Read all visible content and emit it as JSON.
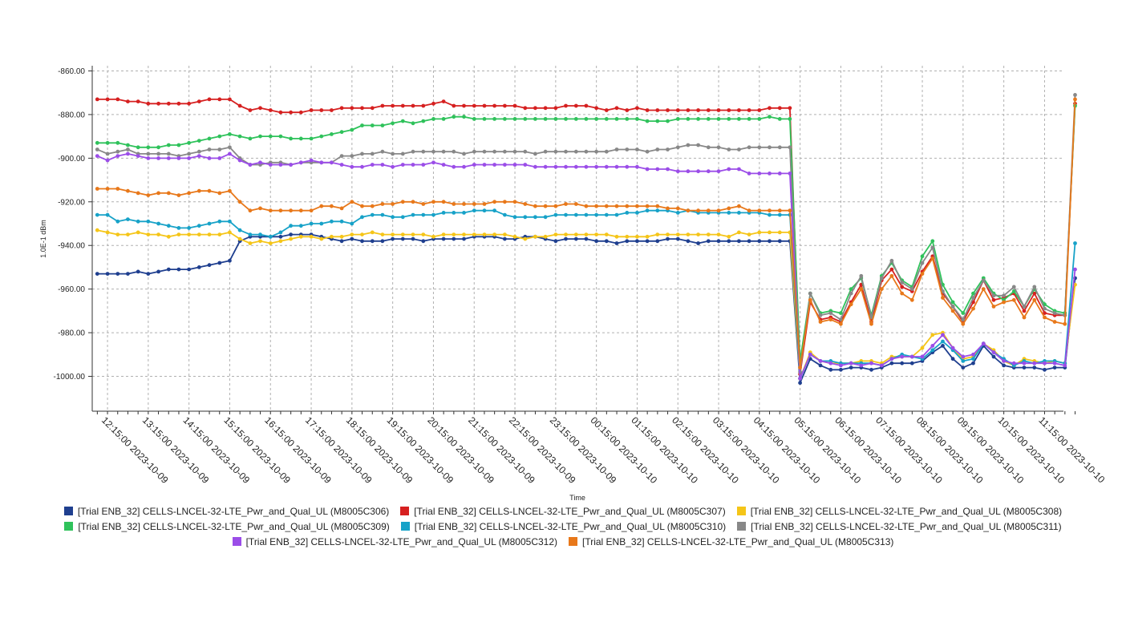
{
  "chart_data": {
    "type": "line",
    "title": "",
    "xlabel": "Time",
    "ylabel": "1.0E-1 dBm",
    "ylim": [
      -1015,
      -855
    ],
    "yticks": [
      -860,
      -880,
      -900,
      -920,
      -940,
      -960,
      -980,
      -1000
    ],
    "ytick_labels": [
      "-860.00",
      "-880.00",
      "-900.00",
      "-920.00",
      "-940.00",
      "-960.00",
      "-980.00",
      "-1000.00"
    ],
    "x_start_hour": 12.0,
    "x_step_hours": 0.25,
    "x_end_hour": 35.875,
    "xtick_labels": [
      "12:15:00 2023-10-09",
      "13:15:00 2023-10-09",
      "14:15:00 2023-10-09",
      "15:15:00 2023-10-09",
      "16:15:00 2023-10-09",
      "17:15:00 2023-10-09",
      "18:15:00 2023-10-09",
      "19:15:00 2023-10-09",
      "20:15:00 2023-10-09",
      "21:15:00 2023-10-09",
      "22:15:00 2023-10-09",
      "23:15:00 2023-10-09",
      "00:15:00 2023-10-10",
      "01:15:00 2023-10-10",
      "02:15:00 2023-10-10",
      "03:15:00 2023-10-10",
      "04:15:00 2023-10-10",
      "05:15:00 2023-10-10",
      "06:15:00 2023-10-10",
      "07:15:00 2023-10-10",
      "08:15:00 2023-10-10",
      "09:15:00 2023-10-10",
      "10:15:00 2023-10-10",
      "11:15:00 2023-10-10"
    ],
    "grid": true,
    "legend_position": "bottom",
    "series": [
      {
        "name": "[Trial ENB_32] CELLS-LNCEL-32-LTE_Pwr_and_Qual_UL (M8005C306)",
        "color": "#1f3f8f",
        "values": [
          -953,
          -953,
          -953,
          -953,
          -952,
          -953,
          -952,
          -951,
          -951,
          -951,
          -950,
          -949,
          -948,
          -947,
          -938,
          -936,
          -936,
          -936,
          -936,
          -935,
          -935,
          -935,
          -936,
          -937,
          -938,
          -937,
          -938,
          -938,
          -938,
          -937,
          -937,
          -937,
          -938,
          -937,
          -937,
          -937,
          -937,
          -936,
          -936,
          -936,
          -937,
          -937,
          -936,
          -936,
          -937,
          -938,
          -937,
          -937,
          -937,
          -938,
          -938,
          -939,
          -938,
          -938,
          -938,
          -938,
          -937,
          -937,
          -938,
          -939,
          -938,
          -938,
          -938,
          -938,
          -938,
          -938,
          -938,
          -938,
          -938,
          -1003,
          -992,
          -995,
          -997,
          -997,
          -996,
          -996,
          -997,
          -996,
          -994,
          -994,
          -994,
          -993,
          -989,
          -986,
          -992,
          -996,
          -994,
          -986,
          -991,
          -995,
          -996,
          -996,
          -996,
          -997,
          -996,
          -996,
          -955
        ]
      },
      {
        "name": "[Trial ENB_32] CELLS-LNCEL-32-LTE_Pwr_and_Qual_UL (M8005C307)",
        "color": "#d62020",
        "values": [
          -873,
          -873,
          -873,
          -874,
          -874,
          -875,
          -875,
          -875,
          -875,
          -875,
          -874,
          -873,
          -873,
          -873,
          -876,
          -878,
          -877,
          -878,
          -879,
          -879,
          -879,
          -878,
          -878,
          -878,
          -877,
          -877,
          -877,
          -877,
          -876,
          -876,
          -876,
          -876,
          -876,
          -875,
          -874,
          -876,
          -876,
          -876,
          -876,
          -876,
          -876,
          -876,
          -877,
          -877,
          -877,
          -877,
          -876,
          -876,
          -876,
          -877,
          -878,
          -877,
          -878,
          -877,
          -878,
          -878,
          -878,
          -878,
          -878,
          -878,
          -878,
          -878,
          -878,
          -878,
          -878,
          -878,
          -877,
          -877,
          -877,
          -999,
          -966,
          -974,
          -973,
          -975,
          -966,
          -958,
          -975,
          -956,
          -951,
          -959,
          -961,
          -952,
          -945,
          -962,
          -968,
          -975,
          -966,
          -956,
          -965,
          -964,
          -962,
          -970,
          -962,
          -971,
          -972,
          -972,
          -875
        ]
      },
      {
        "name": "[Trial ENB_32] CELLS-LNCEL-32-LTE_Pwr_and_Qual_UL (M8005C308)",
        "color": "#f5c518",
        "values": [
          -933,
          -934,
          -935,
          -935,
          -934,
          -935,
          -935,
          -936,
          -935,
          -935,
          -935,
          -935,
          -935,
          -934,
          -937,
          -939,
          -938,
          -939,
          -938,
          -937,
          -936,
          -936,
          -937,
          -936,
          -936,
          -935,
          -935,
          -934,
          -935,
          -935,
          -935,
          -935,
          -935,
          -936,
          -935,
          -935,
          -935,
          -935,
          -935,
          -935,
          -935,
          -936,
          -937,
          -936,
          -936,
          -935,
          -935,
          -935,
          -935,
          -935,
          -935,
          -936,
          -936,
          -936,
          -936,
          -935,
          -935,
          -935,
          -935,
          -935,
          -935,
          -935,
          -936,
          -934,
          -935,
          -934,
          -934,
          -934,
          -934,
          -1001,
          -989,
          -993,
          -994,
          -994,
          -994,
          -993,
          -993,
          -994,
          -991,
          -991,
          -991,
          -987,
          -981,
          -980,
          -987,
          -992,
          -991,
          -985,
          -988,
          -993,
          -995,
          -992,
          -993,
          -994,
          -993,
          -994,
          -958
        ]
      },
      {
        "name": "[Trial ENB_32] CELLS-LNCEL-32-LTE_Pwr_and_Qual_UL (M8005C309)",
        "color": "#2fc25b",
        "values": [
          -893,
          -893,
          -893,
          -894,
          -895,
          -895,
          -895,
          -894,
          -894,
          -893,
          -892,
          -891,
          -890,
          -889,
          -890,
          -891,
          -890,
          -890,
          -890,
          -891,
          -891,
          -891,
          -890,
          -889,
          -888,
          -887,
          -885,
          -885,
          -885,
          -884,
          -883,
          -884,
          -883,
          -882,
          -882,
          -881,
          -881,
          -882,
          -882,
          -882,
          -882,
          -882,
          -882,
          -882,
          -882,
          -882,
          -882,
          -882,
          -882,
          -882,
          -882,
          -882,
          -882,
          -882,
          -883,
          -883,
          -883,
          -882,
          -882,
          -882,
          -882,
          -882,
          -882,
          -882,
          -882,
          -882,
          -881,
          -882,
          -882,
          -993,
          -962,
          -971,
          -970,
          -971,
          -960,
          -955,
          -972,
          -954,
          -948,
          -956,
          -959,
          -945,
          -938,
          -958,
          -966,
          -971,
          -962,
          -955,
          -962,
          -965,
          -961,
          -968,
          -960,
          -967,
          -970,
          -971,
          -876
        ]
      },
      {
        "name": "[Trial ENB_32] CELLS-LNCEL-32-LTE_Pwr_and_Qual_UL (M8005C310)",
        "color": "#17a2c8",
        "values": [
          -926,
          -926,
          -929,
          -928,
          -929,
          -929,
          -930,
          -931,
          -932,
          -932,
          -931,
          -930,
          -929,
          -929,
          -933,
          -935,
          -935,
          -936,
          -934,
          -931,
          -931,
          -930,
          -930,
          -929,
          -929,
          -930,
          -927,
          -926,
          -926,
          -927,
          -927,
          -926,
          -926,
          -926,
          -925,
          -925,
          -925,
          -924,
          -924,
          -924,
          -926,
          -927,
          -927,
          -927,
          -927,
          -926,
          -926,
          -926,
          -926,
          -926,
          -926,
          -926,
          -925,
          -925,
          -924,
          -924,
          -924,
          -925,
          -924,
          -925,
          -925,
          -925,
          -925,
          -925,
          -925,
          -925,
          -926,
          -926,
          -926,
          -1001,
          -990,
          -993,
          -993,
          -994,
          -994,
          -994,
          -994,
          -995,
          -992,
          -990,
          -991,
          -992,
          -988,
          -984,
          -988,
          -993,
          -992,
          -985,
          -989,
          -992,
          -995,
          -993,
          -994,
          -993,
          -993,
          -994,
          -939
        ]
      },
      {
        "name": "[Trial ENB_32] CELLS-LNCEL-32-LTE_Pwr_and_Qual_UL (M8005C311)",
        "color": "#888888",
        "values": [
          -896,
          -898,
          -897,
          -896,
          -898,
          -898,
          -898,
          -898,
          -899,
          -898,
          -897,
          -896,
          -896,
          -895,
          -900,
          -903,
          -903,
          -902,
          -902,
          -903,
          -902,
          -902,
          -902,
          -902,
          -899,
          -899,
          -898,
          -898,
          -897,
          -898,
          -898,
          -897,
          -897,
          -897,
          -897,
          -897,
          -898,
          -897,
          -897,
          -897,
          -897,
          -897,
          -897,
          -898,
          -897,
          -897,
          -897,
          -897,
          -897,
          -897,
          -897,
          -896,
          -896,
          -896,
          -897,
          -896,
          -896,
          -895,
          -894,
          -894,
          -895,
          -895,
          -896,
          -896,
          -895,
          -895,
          -895,
          -895,
          -895,
          -998,
          -962,
          -972,
          -971,
          -974,
          -962,
          -954,
          -973,
          -955,
          -947,
          -957,
          -960,
          -948,
          -941,
          -961,
          -968,
          -974,
          -964,
          -956,
          -963,
          -963,
          -959,
          -968,
          -959,
          -969,
          -971,
          -972,
          -871
        ]
      },
      {
        "name": "[Trial ENB_32] CELLS-LNCEL-32-LTE_Pwr_and_Qual_UL (M8005C312)",
        "color": "#9b4de8",
        "values": [
          -899,
          -901,
          -899,
          -898,
          -899,
          -900,
          -900,
          -900,
          -900,
          -900,
          -899,
          -900,
          -900,
          -898,
          -901,
          -903,
          -902,
          -903,
          -903,
          -903,
          -902,
          -901,
          -902,
          -902,
          -903,
          -904,
          -904,
          -903,
          -903,
          -904,
          -903,
          -903,
          -903,
          -902,
          -903,
          -904,
          -904,
          -903,
          -903,
          -903,
          -903,
          -903,
          -903,
          -904,
          -904,
          -904,
          -904,
          -904,
          -904,
          -904,
          -904,
          -904,
          -904,
          -904,
          -905,
          -905,
          -905,
          -906,
          -906,
          -906,
          -906,
          -906,
          -905,
          -905,
          -907,
          -907,
          -907,
          -907,
          -907,
          -1001,
          -990,
          -993,
          -994,
          -995,
          -994,
          -995,
          -994,
          -995,
          -992,
          -991,
          -991,
          -991,
          -986,
          -981,
          -987,
          -991,
          -990,
          -985,
          -989,
          -993,
          -994,
          -994,
          -994,
          -994,
          -994,
          -995,
          -951
        ]
      },
      {
        "name": "[Trial ENB_32] CELLS-LNCEL-32-LTE_Pwr_and_Qual_UL (M8005C313)",
        "color": "#e8781a",
        "values": [
          -914,
          -914,
          -914,
          -915,
          -916,
          -917,
          -916,
          -916,
          -917,
          -916,
          -915,
          -915,
          -916,
          -915,
          -920,
          -924,
          -923,
          -924,
          -924,
          -924,
          -924,
          -924,
          -922,
          -922,
          -923,
          -920,
          -922,
          -922,
          -921,
          -921,
          -920,
          -920,
          -921,
          -920,
          -920,
          -921,
          -921,
          -921,
          -921,
          -920,
          -920,
          -920,
          -921,
          -922,
          -922,
          -922,
          -921,
          -921,
          -922,
          -922,
          -922,
          -922,
          -922,
          -922,
          -922,
          -922,
          -923,
          -923,
          -924,
          -924,
          -924,
          -924,
          -923,
          -922,
          -924,
          -924,
          -924,
          -924,
          -924,
          -996,
          -965,
          -975,
          -974,
          -976,
          -967,
          -960,
          -976,
          -960,
          -954,
          -962,
          -965,
          -953,
          -946,
          -964,
          -970,
          -976,
          -969,
          -960,
          -968,
          -966,
          -965,
          -973,
          -965,
          -973,
          -975,
          -976,
          -873
        ]
      }
    ]
  }
}
